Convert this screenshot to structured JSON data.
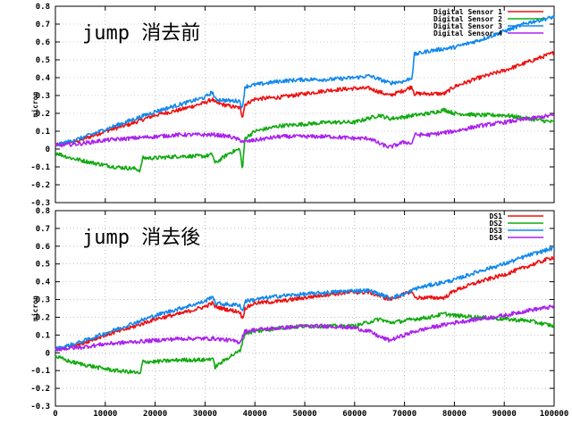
{
  "chart_data": [
    {
      "type": "line",
      "annotation": "jump 消去前",
      "ylabel": "micron",
      "xlim": [
        0,
        100000
      ],
      "ylim": [
        -0.3,
        0.8
      ],
      "xticks": [],
      "yticks": [
        "-0.3",
        "-0.2",
        "-0.1",
        "0",
        "0.1",
        "0.2",
        "0.3",
        "0.4",
        "0.5",
        "0.6",
        "0.7",
        "0.8"
      ],
      "grid": true,
      "legend_position": "top-right",
      "series": [
        {
          "name": "Digital Sensor 1",
          "color": "#ee1111",
          "points": [
            [
              0,
              0.02
            ],
            [
              5000,
              0.05
            ],
            [
              10000,
              0.1
            ],
            [
              15000,
              0.14
            ],
            [
              20000,
              0.19
            ],
            [
              25000,
              0.22
            ],
            [
              30000,
              0.26
            ],
            [
              31500,
              0.28
            ],
            [
              32000,
              0.26
            ],
            [
              35000,
              0.24
            ],
            [
              37000,
              0.23
            ],
            [
              37500,
              0.18
            ],
            [
              38000,
              0.25
            ],
            [
              40000,
              0.28
            ],
            [
              45000,
              0.29
            ],
            [
              50000,
              0.31
            ],
            [
              55000,
              0.33
            ],
            [
              60000,
              0.34
            ],
            [
              63000,
              0.34
            ],
            [
              65000,
              0.32
            ],
            [
              67000,
              0.3
            ],
            [
              70000,
              0.33
            ],
            [
              71500,
              0.35
            ],
            [
              72000,
              0.31
            ],
            [
              75000,
              0.31
            ],
            [
              78000,
              0.31
            ],
            [
              80000,
              0.35
            ],
            [
              85000,
              0.4
            ],
            [
              90000,
              0.44
            ],
            [
              95000,
              0.49
            ],
            [
              100000,
              0.54
            ]
          ]
        },
        {
          "name": "Digital Sensor 2",
          "color": "#11aa11",
          "points": [
            [
              0,
              -0.02
            ],
            [
              3000,
              -0.05
            ],
            [
              8000,
              -0.08
            ],
            [
              12000,
              -0.1
            ],
            [
              16000,
              -0.11
            ],
            [
              17000,
              -0.12
            ],
            [
              17500,
              -0.05
            ],
            [
              20000,
              -0.05
            ],
            [
              25000,
              -0.04
            ],
            [
              30000,
              -0.04
            ],
            [
              31500,
              -0.03
            ],
            [
              32000,
              -0.08
            ],
            [
              33000,
              -0.06
            ],
            [
              35000,
              -0.02
            ],
            [
              37000,
              0.0
            ],
            [
              37500,
              -0.12
            ],
            [
              38000,
              0.06
            ],
            [
              40000,
              0.1
            ],
            [
              45000,
              0.13
            ],
            [
              50000,
              0.14
            ],
            [
              55000,
              0.15
            ],
            [
              60000,
              0.15
            ],
            [
              65000,
              0.19
            ],
            [
              67000,
              0.17
            ],
            [
              70000,
              0.18
            ],
            [
              72000,
              0.19
            ],
            [
              75000,
              0.2
            ],
            [
              78000,
              0.22
            ],
            [
              80000,
              0.2
            ],
            [
              85000,
              0.19
            ],
            [
              90000,
              0.19
            ],
            [
              95000,
              0.17
            ],
            [
              100000,
              0.15
            ]
          ]
        },
        {
          "name": "Digital Sensor 3",
          "color": "#1188ee",
          "points": [
            [
              0,
              0.02
            ],
            [
              5000,
              0.06
            ],
            [
              10000,
              0.11
            ],
            [
              15000,
              0.16
            ],
            [
              20000,
              0.21
            ],
            [
              25000,
              0.25
            ],
            [
              30000,
              0.29
            ],
            [
              31500,
              0.32
            ],
            [
              32000,
              0.28
            ],
            [
              35000,
              0.27
            ],
            [
              37000,
              0.27
            ],
            [
              37500,
              0.22
            ],
            [
              38000,
              0.35
            ],
            [
              40000,
              0.36
            ],
            [
              45000,
              0.38
            ],
            [
              50000,
              0.39
            ],
            [
              55000,
              0.39
            ],
            [
              60000,
              0.4
            ],
            [
              63000,
              0.41
            ],
            [
              65000,
              0.39
            ],
            [
              67000,
              0.37
            ],
            [
              70000,
              0.38
            ],
            [
              71500,
              0.4
            ],
            [
              72000,
              0.53
            ],
            [
              75000,
              0.55
            ],
            [
              80000,
              0.57
            ],
            [
              85000,
              0.61
            ],
            [
              90000,
              0.66
            ],
            [
              95000,
              0.71
            ],
            [
              100000,
              0.74
            ]
          ]
        },
        {
          "name": "Digital Sensor 4",
          "color": "#aa22ee",
          "points": [
            [
              0,
              0.02
            ],
            [
              5000,
              0.03
            ],
            [
              10000,
              0.05
            ],
            [
              15000,
              0.06
            ],
            [
              20000,
              0.07
            ],
            [
              25000,
              0.08
            ],
            [
              30000,
              0.08
            ],
            [
              32000,
              0.08
            ],
            [
              35000,
              0.07
            ],
            [
              38000,
              0.04
            ],
            [
              40000,
              0.05
            ],
            [
              45000,
              0.07
            ],
            [
              50000,
              0.07
            ],
            [
              55000,
              0.07
            ],
            [
              60000,
              0.06
            ],
            [
              63000,
              0.06
            ],
            [
              65000,
              0.03
            ],
            [
              67000,
              0.01
            ],
            [
              70000,
              0.04
            ],
            [
              71500,
              0.03
            ],
            [
              72000,
              0.08
            ],
            [
              75000,
              0.08
            ],
            [
              80000,
              0.1
            ],
            [
              85000,
              0.13
            ],
            [
              90000,
              0.15
            ],
            [
              95000,
              0.17
            ],
            [
              100000,
              0.19
            ]
          ]
        }
      ]
    },
    {
      "type": "line",
      "annotation": "jump 消去後",
      "ylabel": "micron",
      "xlim": [
        0,
        100000
      ],
      "ylim": [
        -0.3,
        0.8
      ],
      "xticks": [
        "0",
        "10000",
        "20000",
        "30000",
        "40000",
        "50000",
        "60000",
        "70000",
        "80000",
        "90000",
        "100000"
      ],
      "yticks": [
        "-0.3",
        "-0.2",
        "-0.1",
        "0",
        "0.1",
        "0.2",
        "0.3",
        "0.4",
        "0.5",
        "0.6",
        "0.7",
        "0.8"
      ],
      "grid": true,
      "legend_position": "top-right",
      "series": [
        {
          "name": "DS1",
          "color": "#ee1111",
          "points": [
            [
              0,
              0.02
            ],
            [
              5000,
              0.05
            ],
            [
              10000,
              0.1
            ],
            [
              15000,
              0.14
            ],
            [
              20000,
              0.19
            ],
            [
              25000,
              0.22
            ],
            [
              30000,
              0.26
            ],
            [
              31500,
              0.28
            ],
            [
              32000,
              0.26
            ],
            [
              35000,
              0.24
            ],
            [
              37000,
              0.23
            ],
            [
              37500,
              0.19
            ],
            [
              38000,
              0.25
            ],
            [
              40000,
              0.28
            ],
            [
              45000,
              0.29
            ],
            [
              50000,
              0.31
            ],
            [
              55000,
              0.33
            ],
            [
              60000,
              0.34
            ],
            [
              63000,
              0.34
            ],
            [
              65000,
              0.32
            ],
            [
              67000,
              0.3
            ],
            [
              70000,
              0.33
            ],
            [
              71500,
              0.35
            ],
            [
              72000,
              0.31
            ],
            [
              75000,
              0.31
            ],
            [
              78000,
              0.31
            ],
            [
              80000,
              0.35
            ],
            [
              85000,
              0.4
            ],
            [
              90000,
              0.44
            ],
            [
              95000,
              0.49
            ],
            [
              100000,
              0.54
            ]
          ]
        },
        {
          "name": "DS2",
          "color": "#11aa11",
          "points": [
            [
              0,
              -0.02
            ],
            [
              3000,
              -0.05
            ],
            [
              8000,
              -0.08
            ],
            [
              12000,
              -0.1
            ],
            [
              16000,
              -0.11
            ],
            [
              17000,
              -0.12
            ],
            [
              17500,
              -0.05
            ],
            [
              20000,
              -0.05
            ],
            [
              25000,
              -0.04
            ],
            [
              30000,
              -0.04
            ],
            [
              31500,
              -0.03
            ],
            [
              32000,
              -0.08
            ],
            [
              33000,
              -0.06
            ],
            [
              35000,
              -0.02
            ],
            [
              37000,
              0.01
            ],
            [
              37500,
              0.06
            ],
            [
              38000,
              0.11
            ],
            [
              40000,
              0.12
            ],
            [
              45000,
              0.14
            ],
            [
              50000,
              0.15
            ],
            [
              55000,
              0.15
            ],
            [
              60000,
              0.15
            ],
            [
              65000,
              0.19
            ],
            [
              67000,
              0.17
            ],
            [
              70000,
              0.18
            ],
            [
              72000,
              0.19
            ],
            [
              75000,
              0.2
            ],
            [
              78000,
              0.22
            ],
            [
              80000,
              0.21
            ],
            [
              85000,
              0.2
            ],
            [
              90000,
              0.19
            ],
            [
              95000,
              0.18
            ],
            [
              100000,
              0.15
            ]
          ]
        },
        {
          "name": "DS3",
          "color": "#1188ee",
          "points": [
            [
              0,
              0.02
            ],
            [
              5000,
              0.06
            ],
            [
              10000,
              0.11
            ],
            [
              15000,
              0.16
            ],
            [
              20000,
              0.21
            ],
            [
              25000,
              0.25
            ],
            [
              30000,
              0.29
            ],
            [
              31500,
              0.32
            ],
            [
              32000,
              0.28
            ],
            [
              35000,
              0.27
            ],
            [
              37000,
              0.27
            ],
            [
              37500,
              0.23
            ],
            [
              38000,
              0.29
            ],
            [
              40000,
              0.3
            ],
            [
              45000,
              0.32
            ],
            [
              50000,
              0.33
            ],
            [
              55000,
              0.34
            ],
            [
              60000,
              0.35
            ],
            [
              63000,
              0.35
            ],
            [
              65000,
              0.33
            ],
            [
              67000,
              0.31
            ],
            [
              70000,
              0.33
            ],
            [
              71500,
              0.35
            ],
            [
              72000,
              0.36
            ],
            [
              75000,
              0.38
            ],
            [
              80000,
              0.41
            ],
            [
              85000,
              0.46
            ],
            [
              90000,
              0.5
            ],
            [
              95000,
              0.55
            ],
            [
              100000,
              0.59
            ]
          ]
        },
        {
          "name": "DS4",
          "color": "#aa22ee",
          "points": [
            [
              0,
              0.02
            ],
            [
              5000,
              0.03
            ],
            [
              10000,
              0.05
            ],
            [
              15000,
              0.06
            ],
            [
              20000,
              0.07
            ],
            [
              25000,
              0.08
            ],
            [
              30000,
              0.08
            ],
            [
              32000,
              0.08
            ],
            [
              35000,
              0.07
            ],
            [
              37000,
              0.06
            ],
            [
              38000,
              0.12
            ],
            [
              40000,
              0.13
            ],
            [
              45000,
              0.14
            ],
            [
              50000,
              0.15
            ],
            [
              55000,
              0.15
            ],
            [
              60000,
              0.14
            ],
            [
              63000,
              0.12
            ],
            [
              65000,
              0.09
            ],
            [
              67000,
              0.07
            ],
            [
              70000,
              0.1
            ],
            [
              72000,
              0.12
            ],
            [
              75000,
              0.14
            ],
            [
              80000,
              0.17
            ],
            [
              85000,
              0.19
            ],
            [
              90000,
              0.21
            ],
            [
              95000,
              0.24
            ],
            [
              100000,
              0.26
            ]
          ]
        }
      ]
    }
  ]
}
